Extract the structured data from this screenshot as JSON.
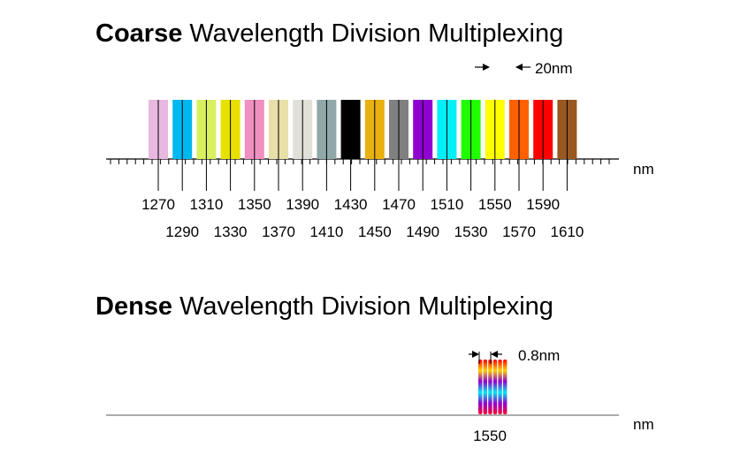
{
  "cwdm": {
    "title_bold": "Coarse",
    "title_rest": " Wavelength Division Multiplexing",
    "unit": "nm",
    "spacing_label": "20nm",
    "spacing_arrow_between": [
      1550,
      1570
    ],
    "channels": [
      {
        "wavelength": 1270,
        "color": "#e8b8e0"
      },
      {
        "wavelength": 1290,
        "color": "#00b8f0"
      },
      {
        "wavelength": 1310,
        "color": "#d8f060"
      },
      {
        "wavelength": 1330,
        "color": "#e8e000"
      },
      {
        "wavelength": 1350,
        "color": "#f090c0"
      },
      {
        "wavelength": 1370,
        "color": "#e8e0a8"
      },
      {
        "wavelength": 1390,
        "color": "#e0e0d8"
      },
      {
        "wavelength": 1410,
        "color": "#90a8a8"
      },
      {
        "wavelength": 1430,
        "color": "#000000"
      },
      {
        "wavelength": 1450,
        "color": "#e8b010"
      },
      {
        "wavelength": 1470,
        "color": "#808080"
      },
      {
        "wavelength": 1490,
        "color": "#9000d0"
      },
      {
        "wavelength": 1510,
        "color": "#00f0f8"
      },
      {
        "wavelength": 1530,
        "color": "#20ff00"
      },
      {
        "wavelength": 1550,
        "color": "#ffff00"
      },
      {
        "wavelength": 1570,
        "color": "#ff6000"
      },
      {
        "wavelength": 1590,
        "color": "#ff0000"
      },
      {
        "wavelength": 1610,
        "color": "#985820"
      }
    ],
    "labels_top_row": [
      "1270",
      "1310",
      "1350",
      "1390",
      "1430",
      "1470",
      "1510",
      "1550",
      "1590"
    ],
    "labels_bottom_row": [
      "1290",
      "1330",
      "1370",
      "1410",
      "1450",
      "1490",
      "1530",
      "1570",
      "1610"
    ]
  },
  "dwdm": {
    "title_bold": "Dense",
    "title_rest": " Wavelength Division Multiplexing",
    "unit": "nm",
    "spacing_label": "0.8nm",
    "center_label": "1550",
    "channel_count": 6,
    "gradient_colors": [
      "#ff0000",
      "#ffd000",
      "#9000d0",
      "#00e8f0",
      "#9000d0",
      "#ff0030"
    ]
  }
}
